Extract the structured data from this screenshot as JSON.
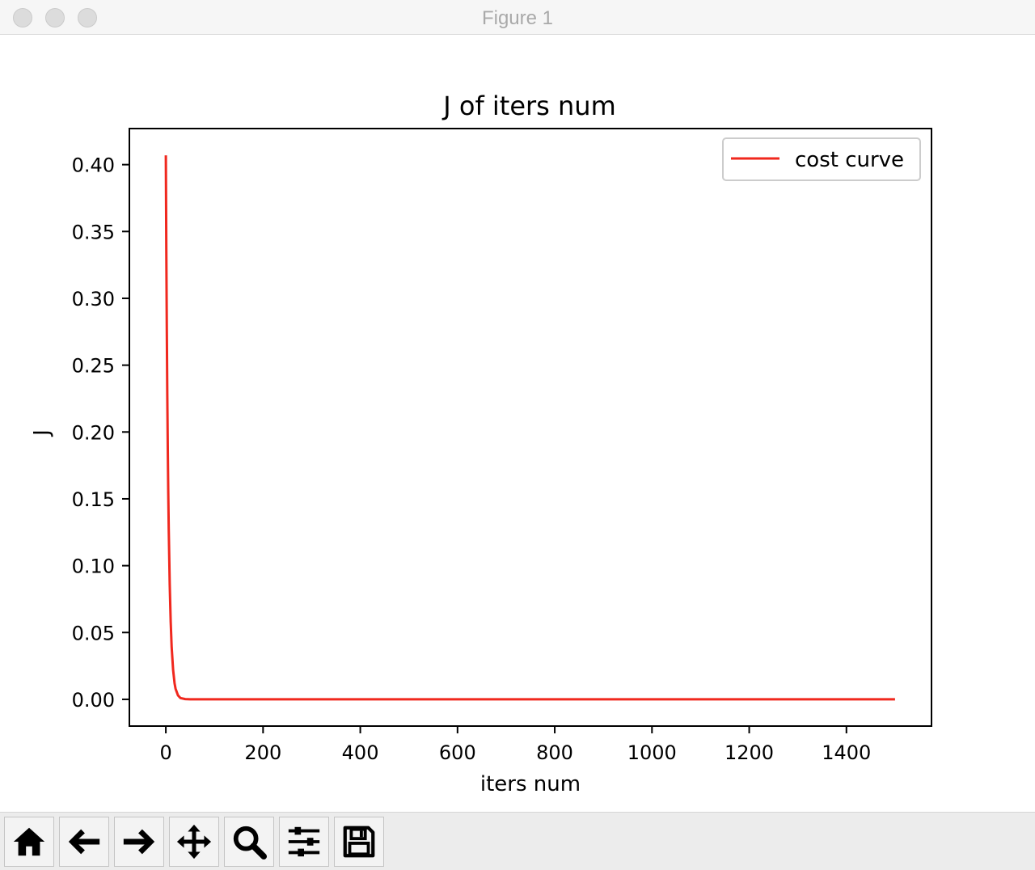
{
  "window": {
    "title": "Figure 1"
  },
  "toolbar": {
    "buttons": [
      {
        "name": "home-button",
        "icon": "home-icon"
      },
      {
        "name": "back-button",
        "icon": "arrow-left-icon"
      },
      {
        "name": "forward-button",
        "icon": "arrow-right-icon"
      },
      {
        "name": "pan-button",
        "icon": "move-icon"
      },
      {
        "name": "zoom-button",
        "icon": "search-icon"
      },
      {
        "name": "configure-subplots-button",
        "icon": "sliders-icon"
      },
      {
        "name": "save-button",
        "icon": "floppy-disk-icon"
      }
    ]
  },
  "chart_data": {
    "type": "line",
    "title": "J of iters num",
    "xlabel": "iters num",
    "ylabel": "J",
    "xlim": [
      -75,
      1575
    ],
    "ylim": [
      -0.02,
      0.427
    ],
    "xticks": [
      0,
      200,
      400,
      600,
      800,
      1000,
      1200,
      1400
    ],
    "xtick_labels": [
      "0",
      "200",
      "400",
      "600",
      "800",
      "1000",
      "1200",
      "1400"
    ],
    "yticks": [
      0.0,
      0.05,
      0.1,
      0.15,
      0.2,
      0.25,
      0.3,
      0.35,
      0.4
    ],
    "ytick_labels": [
      "0.00",
      "0.05",
      "0.10",
      "0.15",
      "0.20",
      "0.25",
      "0.30",
      "0.35",
      "0.40"
    ],
    "grid": false,
    "legend_position": "top-right",
    "series": [
      {
        "name": "cost curve",
        "color": "#f0281e",
        "x": [
          0,
          1,
          2,
          3,
          4,
          5,
          6,
          8,
          10,
          12,
          15,
          18,
          20,
          25,
          30,
          40,
          50,
          100,
          200,
          400,
          600,
          800,
          1000,
          1200,
          1400,
          1500
        ],
        "y": [
          0.407,
          0.335,
          0.276,
          0.227,
          0.187,
          0.154,
          0.127,
          0.086,
          0.058,
          0.039,
          0.022,
          0.012,
          0.008,
          0.003,
          0.001,
          0.0002,
          0.0,
          0.0,
          0.0,
          0.0,
          0.0,
          0.0,
          0.0,
          0.0,
          0.0,
          0.0
        ]
      }
    ]
  }
}
